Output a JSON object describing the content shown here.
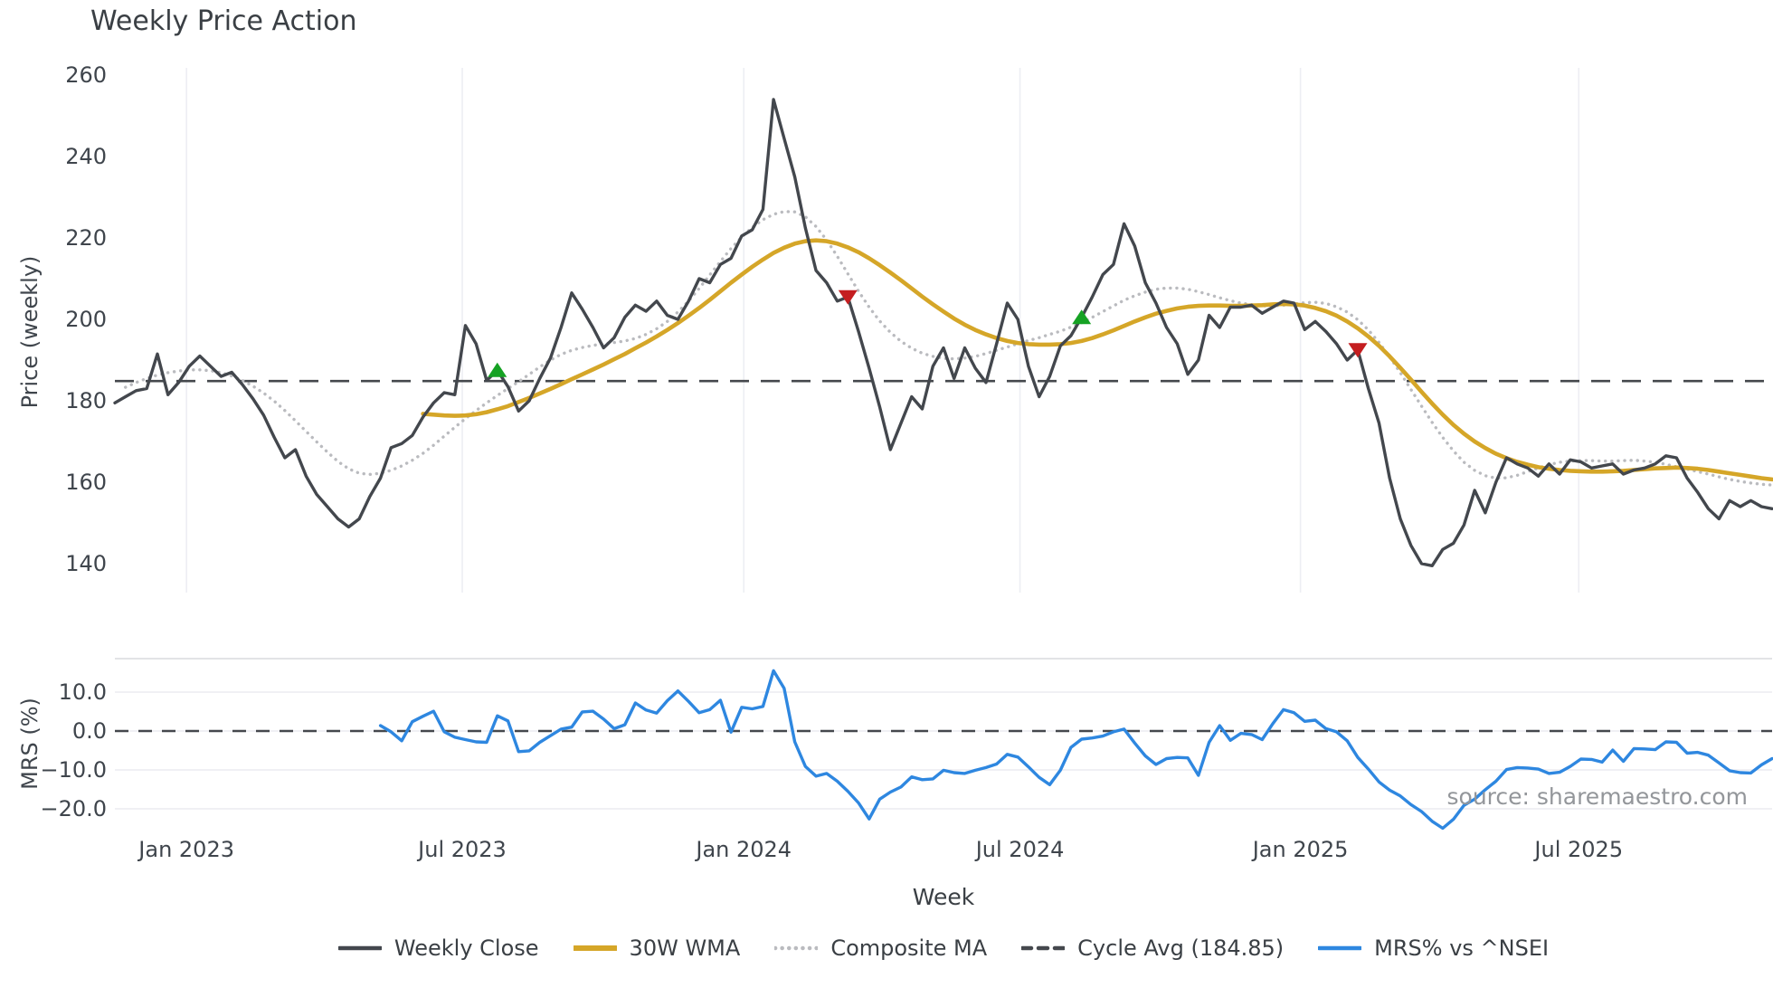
{
  "title": "Weekly Price Action",
  "source": "source: sharemaestro.com",
  "price_panel": {
    "ylabel": "Price (weekly)",
    "yticks": [
      {
        "label": "260",
        "value": 260
      },
      {
        "label": "240",
        "value": 240
      },
      {
        "label": "220",
        "value": 220
      },
      {
        "label": "200",
        "value": 200
      },
      {
        "label": "180",
        "value": 180
      },
      {
        "label": "160",
        "value": 160
      },
      {
        "label": "140",
        "value": 140
      }
    ]
  },
  "mrs_panel": {
    "ylabel": "MRS (%)",
    "yticks": [
      {
        "label": "10.0",
        "value": 10
      },
      {
        "label": "0.0",
        "value": 0
      },
      {
        "label": "−10.0",
        "value": -10
      },
      {
        "label": "−20.0",
        "value": -20
      }
    ]
  },
  "xaxis": {
    "label": "Week",
    "ticks": [
      {
        "label": "Jan 2023",
        "week": 6.74
      },
      {
        "label": "Jul 2023",
        "week": 32.7
      },
      {
        "label": "Jan 2024",
        "week": 59.2
      },
      {
        "label": "Jul 2024",
        "week": 85.2
      },
      {
        "label": "Jan 2025",
        "week": 111.6
      },
      {
        "label": "Jul 2025",
        "week": 137.8
      }
    ]
  },
  "legend": [
    {
      "label": "Weekly Close",
      "style": "solid",
      "color": "#43474d"
    },
    {
      "label": "30W WMA",
      "style": "solid-thick",
      "color": "#d5a628"
    },
    {
      "label": "Composite MA",
      "style": "dotted",
      "color": "#babbbf"
    },
    {
      "label": "Cycle Avg (184.85)",
      "style": "dashed",
      "color": "#45484d"
    },
    {
      "label": "MRS% vs ^NSEI",
      "style": "solid",
      "color": "#2e87e0"
    }
  ],
  "chart_data": [
    {
      "type": "line",
      "panel": "price",
      "title": "Weekly Price Action",
      "ylabel": "Price (weekly)",
      "ylim": [
        133,
        263
      ],
      "grid": "vertical-only",
      "cycle_avg": 184.85,
      "total_weeks": 156,
      "series": [
        {
          "name": "Weekly Close",
          "color": "#43474d",
          "style": "solid",
          "width": 3.4,
          "start_week": 0,
          "values": [
            179.5,
            181,
            182.5,
            183,
            191.5,
            181.5,
            184.5,
            188.5,
            191,
            188.5,
            186,
            187,
            184,
            180.5,
            176.5,
            171,
            166,
            168,
            161.5,
            157,
            154,
            151,
            149,
            151,
            156.5,
            161,
            168.5,
            169.5,
            171.5,
            176,
            179.5,
            182,
            181.5,
            198.5,
            194,
            185,
            187.5,
            183.5,
            177.5,
            180,
            185.5,
            190.5,
            198,
            206.5,
            202.5,
            198,
            193,
            195.5,
            200.5,
            203.5,
            202,
            204.5,
            201,
            200,
            204.5,
            210,
            209,
            213.5,
            215,
            220.5,
            222,
            227,
            254,
            244.5,
            235,
            222.5,
            212,
            209,
            204.5,
            205.5,
            197,
            188,
            178.5,
            168,
            174.5,
            181,
            178,
            188.5,
            193,
            185.5,
            193,
            188,
            184.5,
            194,
            204,
            200,
            188.5,
            181,
            186,
            193.5,
            196,
            200.5,
            205.5,
            211,
            213.5,
            223.5,
            218,
            209,
            204,
            198,
            194,
            186.5,
            190,
            201,
            198,
            203,
            203,
            203.5,
            201.5,
            203,
            204.5,
            204,
            197.5,
            199.5,
            197,
            194,
            190,
            192.5,
            183,
            174.5,
            161,
            151,
            144.5,
            140,
            139.5,
            143.5,
            145,
            149.5,
            158,
            152.5,
            160,
            166,
            164.5,
            163.5,
            161.5,
            164.5,
            162,
            165.5,
            165,
            163.5,
            164,
            164.5,
            162,
            163,
            163.5,
            164.5,
            166.5,
            166,
            161,
            157.5,
            153.5,
            151,
            155.5,
            154,
            155.5,
            154,
            153.5
          ]
        },
        {
          "name": "30W WMA",
          "color": "#d5a628",
          "style": "solid",
          "width": 4.6,
          "start_week": 29,
          "values": [
            176.8,
            176.6,
            176.4,
            176.3,
            176.4,
            176.7,
            177.2,
            177.9,
            178.7,
            179.7,
            180.7,
            181.8,
            182.9,
            184.1,
            185.3,
            186.5,
            187.7,
            188.9,
            190.2,
            191.5,
            192.9,
            194.3,
            195.8,
            197.4,
            199.1,
            200.9,
            202.8,
            204.8,
            206.9,
            209,
            211,
            212.9,
            214.7,
            216.3,
            217.6,
            218.6,
            219.2,
            219.4,
            219.2,
            218.6,
            217.7,
            216.5,
            215,
            213.3,
            211.5,
            209.6,
            207.6,
            205.6,
            203.7,
            201.9,
            200.2,
            198.7,
            197.4,
            196.3,
            195.4,
            194.7,
            194.2,
            193.9,
            193.8,
            193.8,
            193.9,
            194.2,
            194.7,
            195.4,
            196.3,
            197.3,
            198.4,
            199.5,
            200.5,
            201.4,
            202.1,
            202.7,
            203.1,
            203.3,
            203.4,
            203.4,
            203.3,
            203.3,
            203.4,
            203.5,
            203.7,
            203.8,
            203.7,
            203.4,
            202.8,
            202,
            200.9,
            199.5,
            197.8,
            195.8,
            193.5,
            190.9,
            188.1,
            185.2,
            182.2,
            179.3,
            176.6,
            174.1,
            171.9,
            170,
            168.4,
            167,
            165.9,
            165,
            164.3,
            163.7,
            163.3,
            163,
            162.8,
            162.7,
            162.6,
            162.6,
            162.7,
            162.8,
            163,
            163.2,
            163.4,
            163.5,
            163.6,
            163.5,
            163.3,
            163,
            162.6,
            162.2,
            161.8,
            161.4,
            161,
            160.7
          ]
        },
        {
          "name": "Composite MA",
          "color": "#babbbf",
          "style": "dotted",
          "width": 3.4,
          "start_week": 1,
          "values": [
            183.3,
            184.5,
            185.5,
            186.3,
            186.9,
            187.3,
            187.6,
            187.6,
            187.4,
            186.9,
            186.1,
            185,
            183.6,
            181.9,
            179.9,
            177.6,
            175.1,
            172.5,
            169.9,
            167.4,
            165.1,
            163.3,
            162.2,
            161.9,
            162.2,
            162.9,
            164,
            165.4,
            167.1,
            169.1,
            171.3,
            173.5,
            175.6,
            177.6,
            179.5,
            181.3,
            183,
            184.7,
            186.5,
            188.3,
            190,
            191.4,
            192.4,
            193.1,
            193.6,
            194,
            194.3,
            194.7,
            195.3,
            196.3,
            197.7,
            199.5,
            201.8,
            204.5,
            207.6,
            210.9,
            214.2,
            217.4,
            220.2,
            222.6,
            224.5,
            225.8,
            226.5,
            226.4,
            225.2,
            222.8,
            219.5,
            215.5,
            211.2,
            206.9,
            203,
            199.6,
            196.8,
            194.6,
            192.9,
            191.7,
            190.9,
            190.4,
            190.3,
            190.5,
            190.9,
            191.6,
            192.4,
            193.2,
            194,
            194.8,
            195.5,
            196.3,
            197.1,
            198.1,
            199.2,
            200.5,
            201.9,
            203.3,
            204.7,
            205.8,
            206.7,
            207.4,
            207.7,
            207.7,
            207.4,
            206.8,
            206.1,
            205.3,
            204.6,
            204,
            203.6,
            203.3,
            203.3,
            203.5,
            203.8,
            204.1,
            204.2,
            203.9,
            203.1,
            201.8,
            199.9,
            197.4,
            194.3,
            190.8,
            186.9,
            182.8,
            178.7,
            174.7,
            171,
            167.7,
            164.9,
            162.9,
            161.6,
            161,
            161.1,
            161.7,
            162.6,
            163.5,
            164.3,
            164.9,
            165.2,
            165.3,
            165.3,
            165.2,
            165.2,
            165.3,
            165.4,
            165.2,
            164.9,
            164.4,
            163.8,
            163.2,
            162.6,
            162,
            161.3,
            160.7,
            160.2,
            159.8,
            159.5,
            159.3
          ]
        }
      ],
      "signals": {
        "buy": {
          "color": "#16a224",
          "points": [
            {
              "week": 36,
              "price": 187.5
            },
            {
              "week": 91,
              "price": 200.5
            }
          ]
        },
        "sell": {
          "color": "#c41e20",
          "points": [
            {
              "week": 69,
              "price": 205.5
            },
            {
              "week": 117,
              "price": 192.5
            }
          ]
        }
      }
    },
    {
      "type": "line",
      "panel": "mrs",
      "ylabel": "MRS (%)",
      "ylim": [
        -27,
        18
      ],
      "zero_line": 0,
      "series": [
        {
          "name": "MRS% vs ^NSEI",
          "color": "#2e87e0",
          "style": "solid",
          "width": 3.4,
          "start_week": 25,
          "values": [
            1.4,
            -0.2,
            -2.5,
            2.4,
            3.8,
            5.1,
            -0.2,
            -1.6,
            -2.2,
            -2.8,
            -2.9,
            3.9,
            2.6,
            -5.3,
            -5.1,
            -2.9,
            -1.2,
            0.5,
            1,
            4.9,
            5.1,
            3.1,
            0.6,
            1.6,
            7.2,
            5.4,
            4.6,
            7.8,
            10.3,
            7.6,
            4.7,
            5.5,
            7.9,
            -0.3,
            6.1,
            5.7,
            6.3,
            15.5,
            11,
            -2.8,
            -9.1,
            -11.6,
            -10.9,
            -12.9,
            -15.5,
            -18.5,
            -22.6,
            -17.5,
            -15.7,
            -14.4,
            -11.8,
            -12.5,
            -12.3,
            -10.1,
            -10.7,
            -10.9,
            -10.1,
            -9.4,
            -8.5,
            -6,
            -6.7,
            -9.2,
            -11.9,
            -13.8,
            -10.1,
            -4.2,
            -2.1,
            -1.8,
            -1.3,
            -0.2,
            0.5,
            -3.1,
            -6.4,
            -8.6,
            -7.1,
            -6.8,
            -6.9,
            -11.4,
            -2.9,
            1.4,
            -2.4,
            -0.6,
            -0.9,
            -2.2,
            1.9,
            5.5,
            4.7,
            2.5,
            2.8,
            0.6,
            -0.2,
            -2.5,
            -6.8,
            -9.8,
            -13.1,
            -15.2,
            -16.7,
            -18.9,
            -20.7,
            -23.2,
            -25,
            -22.7,
            -19.1,
            -17.5,
            -15.1,
            -12.9,
            -9.9,
            -9.4,
            -9.5,
            -9.8,
            -10.9,
            -10.6,
            -9.1,
            -7.2,
            -7.3,
            -8,
            -4.9,
            -7.8,
            -4.5,
            -4.6,
            -4.8,
            -2.8,
            -2.9,
            -5.7,
            -5.5,
            -6.2,
            -8.2,
            -10.2,
            -10.7,
            -10.8,
            -8.7,
            -7.1
          ]
        }
      ]
    }
  ]
}
